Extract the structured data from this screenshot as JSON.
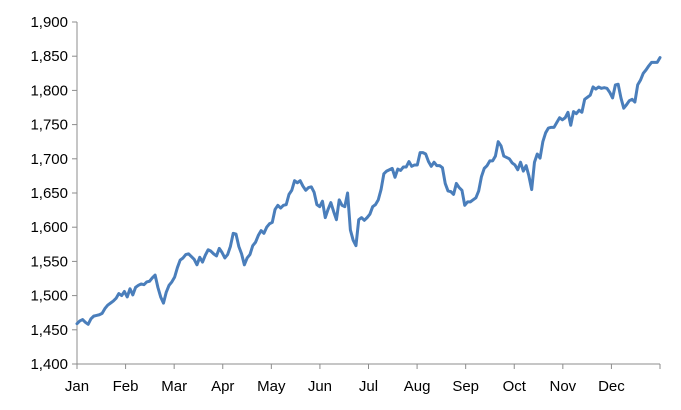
{
  "chart_data": {
    "type": "line",
    "title": "",
    "xlabel": "",
    "ylabel": "",
    "ylim": [
      1400,
      1900
    ],
    "y_ticks": [
      1400,
      1450,
      1500,
      1550,
      1600,
      1650,
      1700,
      1750,
      1800,
      1850,
      1900
    ],
    "y_tick_labels": [
      "1,400",
      "1,450",
      "1,500",
      "1,550",
      "1,600",
      "1,650",
      "1,700",
      "1,750",
      "1,800",
      "1,850",
      "1,900"
    ],
    "x_tick_labels": [
      "Jan",
      "Feb",
      "Mar",
      "Apr",
      "May",
      "Jun",
      "Jul",
      "Aug",
      "Sep",
      "Oct",
      "Nov",
      "Dec"
    ],
    "grid": false,
    "legend": "none",
    "color": "#4a7ebb",
    "series": [
      {
        "values": [
          1459,
          1463,
          1465,
          1461,
          1458,
          1466,
          1470,
          1471,
          1472,
          1474,
          1481,
          1486,
          1489,
          1492,
          1496,
          1503,
          1500,
          1506,
          1498,
          1510,
          1501,
          1512,
          1515,
          1517,
          1516,
          1520,
          1521,
          1526,
          1530,
          1512,
          1498,
          1489,
          1505,
          1515,
          1520,
          1527,
          1541,
          1552,
          1555,
          1560,
          1561,
          1557,
          1553,
          1545,
          1556,
          1549,
          1559,
          1567,
          1565,
          1561,
          1558,
          1569,
          1563,
          1555,
          1560,
          1572,
          1591,
          1590,
          1572,
          1561,
          1545,
          1555,
          1560,
          1573,
          1578,
          1588,
          1595,
          1591,
          1600,
          1605,
          1607,
          1626,
          1632,
          1628,
          1632,
          1633,
          1648,
          1654,
          1668,
          1665,
          1668,
          1660,
          1654,
          1658,
          1659,
          1651,
          1633,
          1630,
          1638,
          1614,
          1626,
          1636,
          1623,
          1611,
          1640,
          1632,
          1630,
          1650,
          1596,
          1581,
          1573,
          1611,
          1614,
          1610,
          1614,
          1619,
          1630,
          1633,
          1640,
          1655,
          1678,
          1682,
          1684,
          1686,
          1673,
          1685,
          1683,
          1688,
          1688,
          1696,
          1689,
          1691,
          1691,
          1709,
          1709,
          1707,
          1696,
          1689,
          1695,
          1690,
          1690,
          1687,
          1664,
          1653,
          1652,
          1648,
          1664,
          1658,
          1654,
          1632,
          1637,
          1637,
          1640,
          1643,
          1653,
          1674,
          1686,
          1690,
          1697,
          1697,
          1704,
          1725,
          1719,
          1704,
          1702,
          1700,
          1694,
          1691,
          1684,
          1695,
          1682,
          1690,
          1675,
          1655,
          1695,
          1707,
          1701,
          1725,
          1738,
          1745,
          1746,
          1746,
          1753,
          1760,
          1757,
          1760,
          1768,
          1749,
          1769,
          1766,
          1771,
          1768,
          1787,
          1790,
          1793,
          1805,
          1802,
          1805,
          1803,
          1804,
          1803,
          1797,
          1789,
          1808,
          1809,
          1789,
          1774,
          1779,
          1785,
          1787,
          1783,
          1808,
          1815,
          1825,
          1830,
          1836,
          1841,
          1841,
          1841,
          1848
        ]
      }
    ]
  }
}
